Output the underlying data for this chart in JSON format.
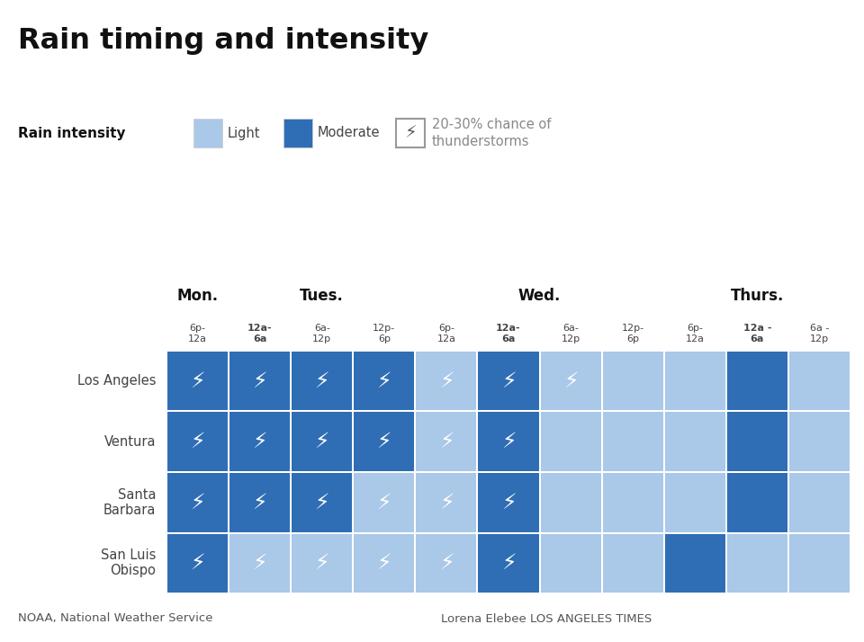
{
  "title": "Rain timing and intensity",
  "subtitle_source": "NOAA, National Weather Service",
  "subtitle_credit": "Lorena Elebee LOS ANGELES TIMES",
  "legend_label": "Rain intensity",
  "legend_light": "Light",
  "legend_moderate": "Moderate",
  "legend_thunder": "20-30% chance of\nthunderstorms",
  "color_light": "#aac8e8",
  "color_moderate": "#2f6eb5",
  "color_empty": "#ffffff",
  "col_labels": [
    "6p-\n12a",
    "12a-\n6a",
    "6a-\n12p",
    "12p-\n6p",
    "6p-\n12a",
    "12a-\n6a",
    "6a-\n12p",
    "12p-\n6p",
    "6p-\n12a",
    "12a -\n6a",
    "6a -\n12p"
  ],
  "col_bold": [
    1,
    5,
    9
  ],
  "row_labels": [
    "Los Angeles",
    "Ventura",
    "Santa\nBarbara",
    "San Luis\nObispo"
  ],
  "grid": [
    [
      "mod",
      "mod",
      "mod",
      "mod",
      "light",
      "mod",
      "light",
      "light",
      "light",
      "mod",
      "light"
    ],
    [
      "mod",
      "mod",
      "mod",
      "mod",
      "light",
      "mod",
      "light",
      "light",
      "light",
      "mod",
      "light"
    ],
    [
      "mod",
      "mod",
      "mod",
      "light",
      "light",
      "mod",
      "light",
      "light",
      "light",
      "mod",
      "light"
    ],
    [
      "mod",
      "light",
      "light",
      "light",
      "light",
      "mod",
      "light",
      "light",
      "mod",
      "light",
      "light"
    ]
  ],
  "thunder": [
    [
      true,
      true,
      true,
      true,
      true,
      true,
      true,
      false,
      false,
      false,
      false
    ],
    [
      true,
      true,
      true,
      true,
      true,
      true,
      false,
      false,
      false,
      false,
      false
    ],
    [
      true,
      true,
      true,
      true,
      true,
      true,
      false,
      false,
      false,
      false,
      false
    ],
    [
      true,
      true,
      true,
      true,
      true,
      true,
      false,
      false,
      false,
      false,
      false
    ]
  ],
  "background_color": "#ffffff",
  "grid_line_color": "#ffffff",
  "text_color": "#444444",
  "day_label_color": "#111111"
}
